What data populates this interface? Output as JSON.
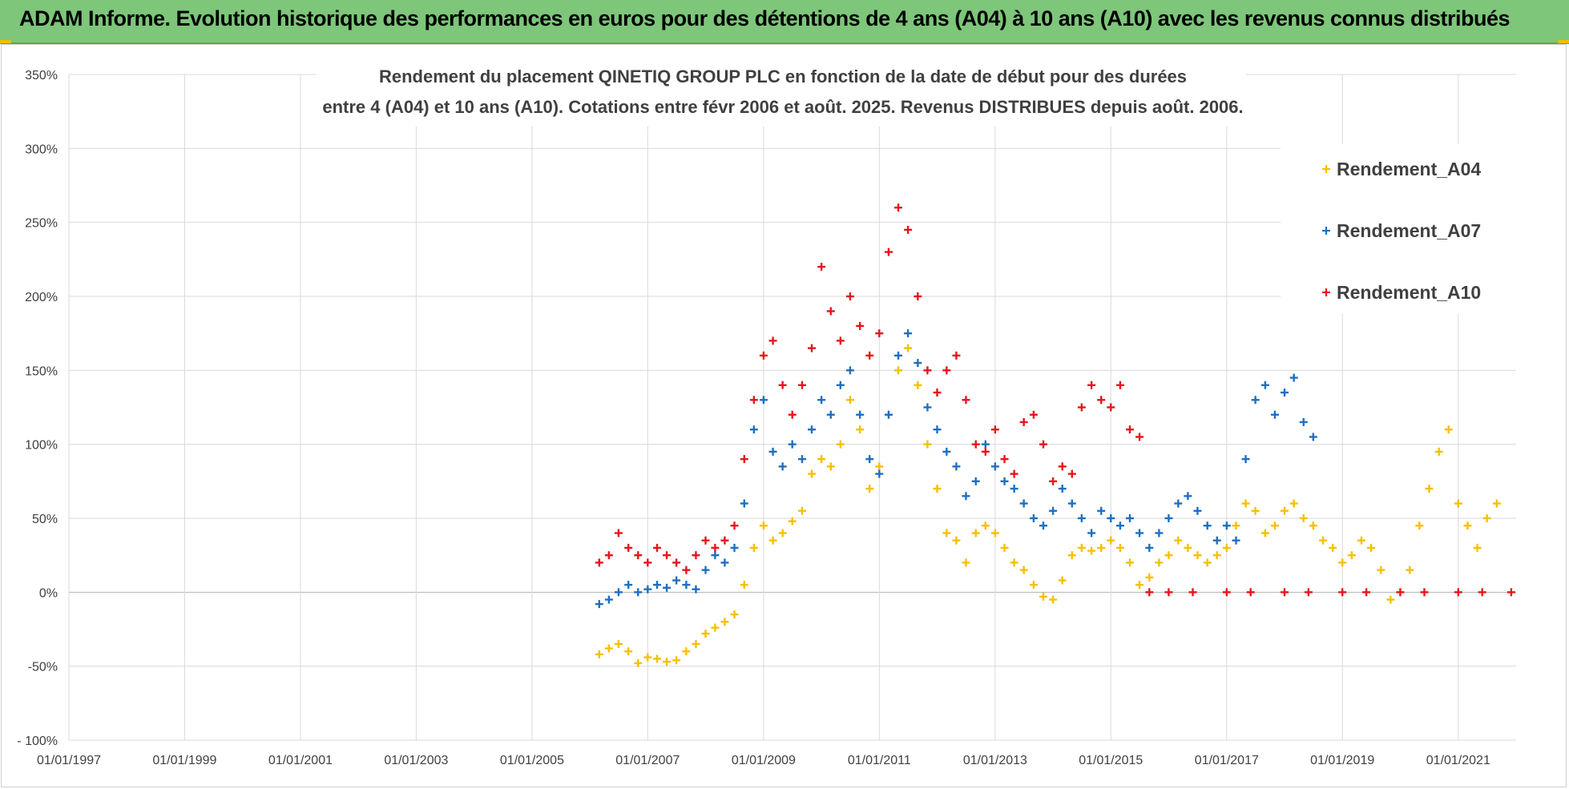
{
  "banner": {
    "title": "ADAM Informe. Evolution historique des performances en euros pour des détentions de 4 ans (A04) à 10 ans (A10) avec les revenus connus distribués",
    "color": "#7dc67a"
  },
  "chart_data": {
    "type": "scatter",
    "title_line1": "Rendement du placement QINETIQ GROUP PLC en fonction de la date de début pour des durées",
    "title_line2": "entre 4 (A04) et 10 ans (A10). Cotations entre févr 2006 et août. 2025. Revenus DISTRIBUES depuis août. 2006.",
    "xlabel": "",
    "ylabel": "",
    "x_range": [
      "1997-01-01",
      "2022-01-01"
    ],
    "x_ticks": [
      "01/01/1997",
      "01/01/1999",
      "01/01/2001",
      "01/01/2003",
      "01/01/2005",
      "01/01/2007",
      "01/01/2009",
      "01/01/2011",
      "01/01/2013",
      "01/01/2015",
      "01/01/2017",
      "01/01/2019",
      "01/01/2021"
    ],
    "ylim": [
      -100,
      350
    ],
    "y_ticks": [
      "350%",
      "300%",
      "250%",
      "200%",
      "150%",
      "100%",
      "50%",
      "0%",
      "-50%",
      "- 100%"
    ],
    "y_tick_values": [
      350,
      300,
      250,
      200,
      150,
      100,
      50,
      0,
      -50,
      -100
    ],
    "grid": true,
    "marker": "+",
    "legend_position": "top-right",
    "series": [
      {
        "name": "Rendement_A04",
        "color": "#f5c000",
        "points": [
          [
            "2006-03-01",
            -42
          ],
          [
            "2006-05-01",
            -38
          ],
          [
            "2006-07-01",
            -35
          ],
          [
            "2006-09-01",
            -40
          ],
          [
            "2006-11-01",
            -48
          ],
          [
            "2007-01-01",
            -44
          ],
          [
            "2007-03-01",
            -45
          ],
          [
            "2007-05-01",
            -47
          ],
          [
            "2007-07-01",
            -46
          ],
          [
            "2007-09-01",
            -40
          ],
          [
            "2007-11-01",
            -35
          ],
          [
            "2008-01-01",
            -28
          ],
          [
            "2008-03-01",
            -24
          ],
          [
            "2008-05-01",
            -20
          ],
          [
            "2008-07-01",
            -15
          ],
          [
            "2008-09-01",
            5
          ],
          [
            "2008-11-01",
            30
          ],
          [
            "2009-01-01",
            45
          ],
          [
            "2009-03-01",
            35
          ],
          [
            "2009-05-01",
            40
          ],
          [
            "2009-07-01",
            48
          ],
          [
            "2009-09-01",
            55
          ],
          [
            "2009-11-01",
            80
          ],
          [
            "2010-01-01",
            90
          ],
          [
            "2010-03-01",
            85
          ],
          [
            "2010-05-01",
            100
          ],
          [
            "2010-07-01",
            130
          ],
          [
            "2010-09-01",
            110
          ],
          [
            "2010-11-01",
            70
          ],
          [
            "2011-01-01",
            85
          ],
          [
            "2011-03-01",
            120
          ],
          [
            "2011-05-01",
            150
          ],
          [
            "2011-07-01",
            165
          ],
          [
            "2011-09-01",
            140
          ],
          [
            "2011-11-01",
            100
          ],
          [
            "2012-01-01",
            70
          ],
          [
            "2012-03-01",
            40
          ],
          [
            "2012-05-01",
            35
          ],
          [
            "2012-07-01",
            20
          ],
          [
            "2012-09-01",
            40
          ],
          [
            "2012-11-01",
            45
          ],
          [
            "2013-01-01",
            40
          ],
          [
            "2013-03-01",
            30
          ],
          [
            "2013-05-01",
            20
          ],
          [
            "2013-07-01",
            15
          ],
          [
            "2013-09-01",
            5
          ],
          [
            "2013-11-01",
            -3
          ],
          [
            "2014-01-01",
            -5
          ],
          [
            "2014-03-01",
            8
          ],
          [
            "2014-05-01",
            25
          ],
          [
            "2014-07-01",
            30
          ],
          [
            "2014-09-01",
            28
          ],
          [
            "2014-11-01",
            30
          ],
          [
            "2015-01-01",
            35
          ],
          [
            "2015-03-01",
            30
          ],
          [
            "2015-05-01",
            20
          ],
          [
            "2015-07-01",
            5
          ],
          [
            "2015-09-01",
            10
          ],
          [
            "2015-11-01",
            20
          ],
          [
            "2016-01-01",
            25
          ],
          [
            "2016-03-01",
            35
          ],
          [
            "2016-05-01",
            30
          ],
          [
            "2016-07-01",
            25
          ],
          [
            "2016-09-01",
            20
          ],
          [
            "2016-11-01",
            25
          ],
          [
            "2017-01-01",
            30
          ],
          [
            "2017-03-01",
            45
          ],
          [
            "2017-05-01",
            60
          ],
          [
            "2017-07-01",
            55
          ],
          [
            "2017-09-01",
            40
          ],
          [
            "2017-11-01",
            45
          ],
          [
            "2018-01-01",
            55
          ],
          [
            "2018-03-01",
            60
          ],
          [
            "2018-05-01",
            50
          ],
          [
            "2018-07-01",
            45
          ],
          [
            "2018-09-01",
            35
          ],
          [
            "2018-11-01",
            30
          ],
          [
            "2019-01-01",
            20
          ],
          [
            "2019-03-01",
            25
          ],
          [
            "2019-05-01",
            35
          ],
          [
            "2019-07-01",
            30
          ],
          [
            "2019-09-01",
            15
          ],
          [
            "2019-11-01",
            -5
          ],
          [
            "2020-01-01",
            0
          ],
          [
            "2020-03-01",
            15
          ],
          [
            "2020-05-01",
            45
          ],
          [
            "2020-07-01",
            70
          ],
          [
            "2020-09-01",
            95
          ],
          [
            "2020-11-01",
            110
          ],
          [
            "2021-01-01",
            60
          ],
          [
            "2021-03-01",
            45
          ],
          [
            "2021-05-01",
            30
          ],
          [
            "2021-07-01",
            50
          ],
          [
            "2021-09-01",
            60
          ]
        ]
      },
      {
        "name": "Rendement_A07",
        "color": "#1f6fc0",
        "points": [
          [
            "2006-03-01",
            -8
          ],
          [
            "2006-05-01",
            -5
          ],
          [
            "2006-07-01",
            0
          ],
          [
            "2006-09-01",
            5
          ],
          [
            "2006-11-01",
            0
          ],
          [
            "2007-01-01",
            2
          ],
          [
            "2007-03-01",
            5
          ],
          [
            "2007-05-01",
            3
          ],
          [
            "2007-07-01",
            8
          ],
          [
            "2007-09-01",
            5
          ],
          [
            "2007-11-01",
            2
          ],
          [
            "2008-01-01",
            15
          ],
          [
            "2008-03-01",
            25
          ],
          [
            "2008-05-01",
            20
          ],
          [
            "2008-07-01",
            30
          ],
          [
            "2008-09-01",
            60
          ],
          [
            "2008-11-01",
            110
          ],
          [
            "2009-01-01",
            130
          ],
          [
            "2009-03-01",
            95
          ],
          [
            "2009-05-01",
            85
          ],
          [
            "2009-07-01",
            100
          ],
          [
            "2009-09-01",
            90
          ],
          [
            "2009-11-01",
            110
          ],
          [
            "2010-01-01",
            130
          ],
          [
            "2010-03-01",
            120
          ],
          [
            "2010-05-01",
            140
          ],
          [
            "2010-07-01",
            150
          ],
          [
            "2010-09-01",
            120
          ],
          [
            "2010-11-01",
            90
          ],
          [
            "2011-01-01",
            80
          ],
          [
            "2011-03-01",
            120
          ],
          [
            "2011-05-01",
            160
          ],
          [
            "2011-07-01",
            175
          ],
          [
            "2011-09-01",
            155
          ],
          [
            "2011-11-01",
            125
          ],
          [
            "2012-01-01",
            110
          ],
          [
            "2012-03-01",
            95
          ],
          [
            "2012-05-01",
            85
          ],
          [
            "2012-07-01",
            65
          ],
          [
            "2012-09-01",
            75
          ],
          [
            "2012-11-01",
            100
          ],
          [
            "2013-01-01",
            85
          ],
          [
            "2013-03-01",
            75
          ],
          [
            "2013-05-01",
            70
          ],
          [
            "2013-07-01",
            60
          ],
          [
            "2013-09-01",
            50
          ],
          [
            "2013-11-01",
            45
          ],
          [
            "2014-01-01",
            55
          ],
          [
            "2014-03-01",
            70
          ],
          [
            "2014-05-01",
            60
          ],
          [
            "2014-07-01",
            50
          ],
          [
            "2014-09-01",
            40
          ],
          [
            "2014-11-01",
            55
          ],
          [
            "2015-01-01",
            50
          ],
          [
            "2015-03-01",
            45
          ],
          [
            "2015-05-01",
            50
          ],
          [
            "2015-07-01",
            40
          ],
          [
            "2015-09-01",
            30
          ],
          [
            "2015-11-01",
            40
          ],
          [
            "2016-01-01",
            50
          ],
          [
            "2016-03-01",
            60
          ],
          [
            "2016-05-01",
            65
          ],
          [
            "2016-07-01",
            55
          ],
          [
            "2016-09-01",
            45
          ],
          [
            "2016-11-01",
            35
          ],
          [
            "2017-01-01",
            45
          ],
          [
            "2017-03-01",
            35
          ],
          [
            "2017-05-01",
            90
          ],
          [
            "2017-07-01",
            130
          ],
          [
            "2017-09-01",
            140
          ],
          [
            "2017-11-01",
            120
          ],
          [
            "2018-01-01",
            135
          ],
          [
            "2018-03-01",
            145
          ],
          [
            "2018-05-01",
            115
          ],
          [
            "2018-07-01",
            105
          ]
        ]
      },
      {
        "name": "Rendement_A10",
        "color": "#e8141c",
        "points": [
          [
            "2006-03-01",
            20
          ],
          [
            "2006-05-01",
            25
          ],
          [
            "2006-07-01",
            40
          ],
          [
            "2006-09-01",
            30
          ],
          [
            "2006-11-01",
            25
          ],
          [
            "2007-01-01",
            20
          ],
          [
            "2007-03-01",
            30
          ],
          [
            "2007-05-01",
            25
          ],
          [
            "2007-07-01",
            20
          ],
          [
            "2007-09-01",
            15
          ],
          [
            "2007-11-01",
            25
          ],
          [
            "2008-01-01",
            35
          ],
          [
            "2008-03-01",
            30
          ],
          [
            "2008-05-01",
            35
          ],
          [
            "2008-07-01",
            45
          ],
          [
            "2008-09-01",
            90
          ],
          [
            "2008-11-01",
            130
          ],
          [
            "2009-01-01",
            160
          ],
          [
            "2009-03-01",
            170
          ],
          [
            "2009-05-01",
            140
          ],
          [
            "2009-07-01",
            120
          ],
          [
            "2009-09-01",
            140
          ],
          [
            "2009-11-01",
            165
          ],
          [
            "2010-01-01",
            220
          ],
          [
            "2010-03-01",
            190
          ],
          [
            "2010-05-01",
            170
          ],
          [
            "2010-07-01",
            200
          ],
          [
            "2010-09-01",
            180
          ],
          [
            "2010-11-01",
            160
          ],
          [
            "2011-01-01",
            175
          ],
          [
            "2011-03-01",
            230
          ],
          [
            "2011-05-01",
            260
          ],
          [
            "2011-07-01",
            245
          ],
          [
            "2011-09-01",
            200
          ],
          [
            "2011-11-01",
            150
          ],
          [
            "2012-01-01",
            135
          ],
          [
            "2012-03-01",
            150
          ],
          [
            "2012-05-01",
            160
          ],
          [
            "2012-07-01",
            130
          ],
          [
            "2012-09-01",
            100
          ],
          [
            "2012-11-01",
            95
          ],
          [
            "2013-01-01",
            110
          ],
          [
            "2013-03-01",
            90
          ],
          [
            "2013-05-01",
            80
          ],
          [
            "2013-07-01",
            115
          ],
          [
            "2013-09-01",
            120
          ],
          [
            "2013-11-01",
            100
          ],
          [
            "2014-01-01",
            75
          ],
          [
            "2014-03-01",
            85
          ],
          [
            "2014-05-01",
            80
          ],
          [
            "2014-07-01",
            125
          ],
          [
            "2014-09-01",
            140
          ],
          [
            "2014-11-01",
            130
          ],
          [
            "2015-01-01",
            125
          ],
          [
            "2015-03-01",
            140
          ],
          [
            "2015-05-01",
            110
          ],
          [
            "2015-07-01",
            105
          ],
          [
            "2015-09-01",
            0
          ],
          [
            "2016-01-01",
            0
          ],
          [
            "2016-06-01",
            0
          ],
          [
            "2017-01-01",
            0
          ],
          [
            "2017-06-01",
            0
          ],
          [
            "2018-01-01",
            0
          ],
          [
            "2018-06-01",
            0
          ],
          [
            "2019-01-01",
            0
          ],
          [
            "2019-06-01",
            0
          ],
          [
            "2020-01-01",
            0
          ],
          [
            "2020-06-01",
            0
          ],
          [
            "2021-01-01",
            0
          ],
          [
            "2021-06-01",
            0
          ],
          [
            "2021-12-01",
            0
          ]
        ]
      }
    ]
  }
}
